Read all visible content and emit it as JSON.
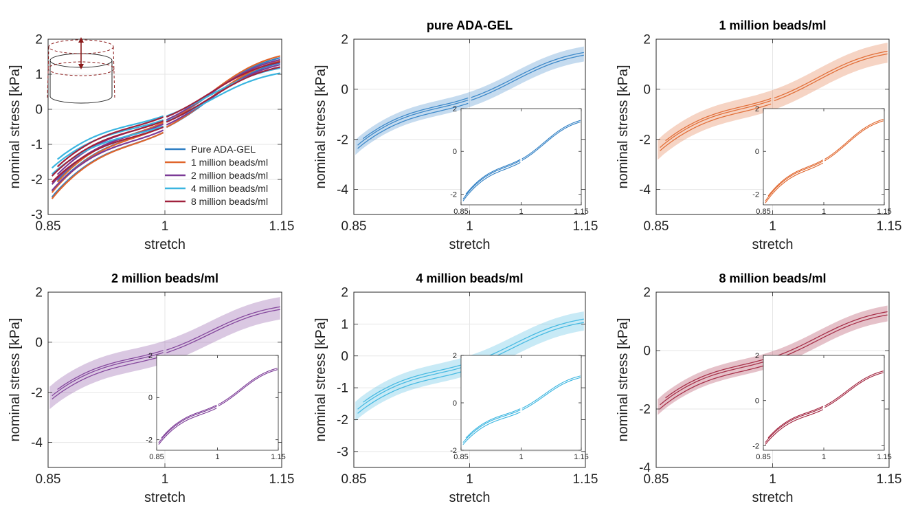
{
  "colors": {
    "axis": "#262626",
    "grid": "#e6e6e6",
    "blue": "#2f7fc4",
    "orange": "#e0652b",
    "purple": "#7b3a96",
    "cyan": "#3ab5e0",
    "red": "#a0213c",
    "icon": "#8b1a1a"
  },
  "chart_data": [
    {
      "type": "line",
      "title": "",
      "xlabel": "stretch",
      "ylabel": "nominal stress [kPa]",
      "xlim": [
        0.85,
        1.15
      ],
      "ylim": [
        -3,
        2
      ],
      "xticks": [
        0.85,
        1,
        1.15
      ],
      "yticks": [
        -3,
        -2,
        -1,
        0,
        1,
        2
      ],
      "xtick_labels": [
        "0.85",
        "1",
        "1.15"
      ],
      "ytick_labels": [
        "-3",
        "-2",
        "-1",
        "0",
        "1",
        "2"
      ],
      "grid": true,
      "legend": "lower-right",
      "icon": "cylinder-stretch-icon",
      "series": [
        {
          "name": "Pure ADA-GEL",
          "color": "#2f7fc4",
          "start": -2.5,
          "end": 1.33
        },
        {
          "name": "1 million beads/ml",
          "color": "#e0652b",
          "start": -2.55,
          "end": 1.38
        },
        {
          "name": "2 million beads/ml",
          "color": "#7b3a96",
          "start": -2.3,
          "end": 1.28
        },
        {
          "name": "4 million beads/ml",
          "color": "#3ab5e0",
          "start": -1.8,
          "end": 1.05
        },
        {
          "name": "8 million beads/ml",
          "color": "#a0213c",
          "start": -2.05,
          "end": 1.22
        }
      ]
    },
    {
      "type": "line",
      "title": "pure ADA-GEL",
      "xlabel": "stretch",
      "ylabel": "nominal stress [kPa]",
      "xlim": [
        0.85,
        1.15
      ],
      "ylim": [
        -5,
        2
      ],
      "xticks": [
        0.85,
        1,
        1.15
      ],
      "yticks": [
        -4,
        -2,
        0,
        2
      ],
      "xtick_labels": [
        "0.85",
        "1",
        "1.15"
      ],
      "ytick_labels": [
        "-4",
        "-2",
        "0",
        "2"
      ],
      "grid": true,
      "color": "#2f7fc4",
      "start": -2.4,
      "end": 1.35,
      "band": 0.25,
      "inset": {
        "ylim": [
          -2.5,
          2
        ],
        "yticks": [
          -2,
          0,
          2
        ],
        "ytick_labels": [
          "-2",
          "0",
          "2"
        ],
        "xtick_labels": [
          "0.85",
          "1",
          "1.15"
        ]
      }
    },
    {
      "type": "line",
      "title": "1 million beads/ml",
      "xlabel": "stretch",
      "ylabel": "nominal stress [kPa]",
      "xlim": [
        0.85,
        1.15
      ],
      "ylim": [
        -5,
        2
      ],
      "xticks": [
        0.85,
        1,
        1.15
      ],
      "yticks": [
        -4,
        -2,
        0,
        2
      ],
      "xtick_labels": [
        "0.85",
        "1",
        "1.15"
      ],
      "ytick_labels": [
        "-4",
        "-2",
        "0",
        "2"
      ],
      "grid": true,
      "color": "#e0652b",
      "start": -2.5,
      "end": 1.4,
      "band": 0.35,
      "inset": {
        "ylim": [
          -2.5,
          2
        ],
        "yticks": [
          -2,
          0,
          2
        ],
        "ytick_labels": [
          "-2",
          "0",
          "2"
        ],
        "xtick_labels": [
          "0.85",
          "1",
          "1.15"
        ]
      }
    },
    {
      "type": "line",
      "title": "2 million beads/ml",
      "xlabel": "stretch",
      "ylabel": "nominal stress [kPa]",
      "xlim": [
        0.85,
        1.15
      ],
      "ylim": [
        -5,
        2
      ],
      "xticks": [
        0.85,
        1,
        1.15
      ],
      "yticks": [
        -4,
        -2,
        0,
        2
      ],
      "xtick_labels": [
        "0.85",
        "1",
        "1.15"
      ],
      "ytick_labels": [
        "-4",
        "-2",
        "0",
        "2"
      ],
      "grid": true,
      "color": "#7b3a96",
      "start": -2.3,
      "end": 1.3,
      "band": 0.4,
      "inset": {
        "ylim": [
          -2.5,
          2
        ],
        "yticks": [
          -2,
          0,
          2
        ],
        "ytick_labels": [
          "-2",
          "0",
          "2"
        ],
        "xtick_labels": [
          "0.85",
          "1",
          "1.15"
        ]
      }
    },
    {
      "type": "line",
      "title": "4 million beads/ml",
      "xlabel": "stretch",
      "ylabel": "nominal stress [kPa]",
      "xlim": [
        0.85,
        1.15
      ],
      "ylim": [
        -3.5,
        2
      ],
      "xticks": [
        0.85,
        1,
        1.15
      ],
      "yticks": [
        -3,
        -2,
        -1,
        0,
        1,
        2
      ],
      "xtick_labels": [
        "0.85",
        "1",
        "1.15"
      ],
      "ytick_labels": [
        "-3",
        "-2",
        "-1",
        "0",
        "1",
        "2"
      ],
      "grid": true,
      "color": "#3ab5e0",
      "start": -1.8,
      "end": 1.05,
      "band": 0.25,
      "inset": {
        "ylim": [
          -2,
          2
        ],
        "yticks": [
          -2,
          0,
          2
        ],
        "ytick_labels": [
          "-2",
          "0",
          "2"
        ],
        "xtick_labels": [
          "0.85",
          "1",
          "1.15"
        ]
      }
    },
    {
      "type": "line",
      "title": "8 million beads/ml",
      "xlabel": "stretch",
      "ylabel": "nominal stress [kPa]",
      "xlim": [
        0.85,
        1.15
      ],
      "ylim": [
        -4,
        2
      ],
      "xticks": [
        0.85,
        1,
        1.15
      ],
      "yticks": [
        -4,
        -2,
        0,
        2
      ],
      "xtick_labels": [
        "0.85",
        "1",
        "1.15"
      ],
      "ytick_labels": [
        "-4",
        "-2",
        "0",
        "2"
      ],
      "grid": true,
      "color": "#a0213c",
      "start": -2.0,
      "end": 1.22,
      "band": 0.22,
      "inset": {
        "ylim": [
          -2.2,
          2
        ],
        "yticks": [
          -2,
          0,
          2
        ],
        "ytick_labels": [
          "-2",
          "0",
          "2"
        ],
        "xtick_labels": [
          "0.85",
          "1",
          "1.15"
        ]
      }
    }
  ]
}
